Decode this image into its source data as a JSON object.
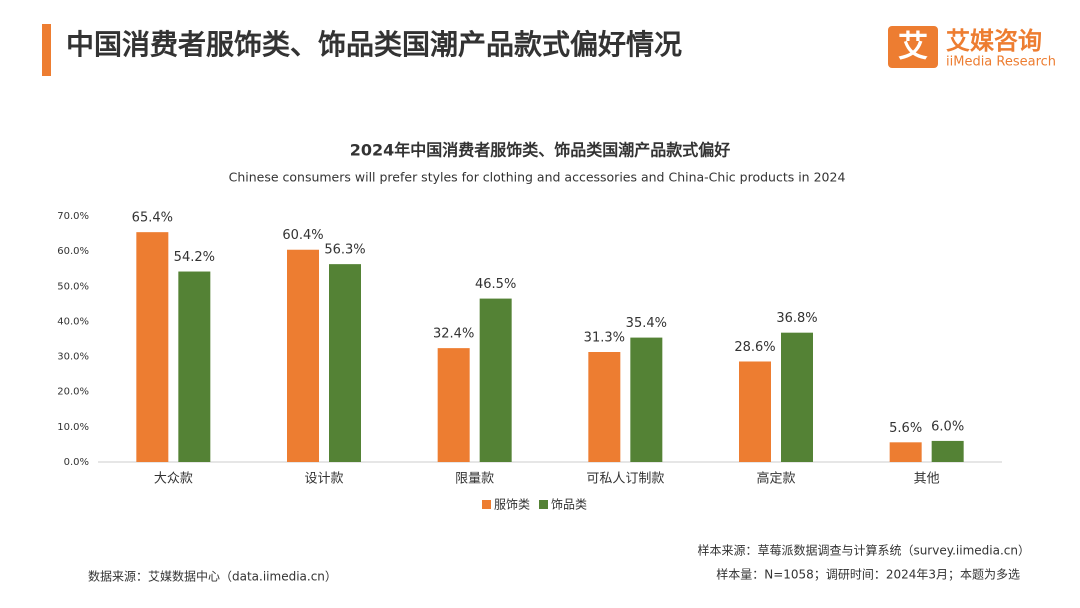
{
  "header": {
    "title": "中国消费者服饰类、饰品类国潮产品款式偏好情况",
    "logo_mark": "艾",
    "logo_cn": "艾媒咨询",
    "logo_en": "iiMedia Research"
  },
  "chart_data": {
    "type": "bar",
    "title": "2024年中国消费者服饰类、饰品类国潮产品款式偏好",
    "subtitle": "Chinese consumers will prefer styles for clothing and accessories and China-Chic products in 2024",
    "categories": [
      "大众款",
      "设计款",
      "限量款",
      "可私人订制款",
      "高定款",
      "其他"
    ],
    "series": [
      {
        "name": "服饰类",
        "color": "#ed7d31",
        "values": [
          65.4,
          60.4,
          32.4,
          31.3,
          28.6,
          5.6
        ],
        "value_labels": [
          "65.4%",
          "60.4%",
          "32.4%",
          "31.3%",
          "28.6%",
          "5.6%"
        ]
      },
      {
        "name": "饰品类",
        "color": "#548235",
        "values": [
          54.2,
          56.3,
          46.5,
          35.4,
          36.8,
          6.0
        ],
        "value_labels": [
          "54.2%",
          "56.3%",
          "46.5%",
          "35.4%",
          "36.8%",
          "6.0%"
        ]
      }
    ],
    "ylim": [
      0,
      70
    ],
    "yticks": [
      {
        "value": 0,
        "label": "0.0%"
      },
      {
        "value": 10,
        "label": "10.0%"
      },
      {
        "value": 20,
        "label": "20.0%"
      },
      {
        "value": 30,
        "label": "30.0%"
      },
      {
        "value": 40,
        "label": "40.0%"
      },
      {
        "value": 50,
        "label": "50.0%"
      },
      {
        "value": 60,
        "label": "60.0%"
      },
      {
        "value": 70,
        "label": "70.0%"
      }
    ],
    "grid": false,
    "legend": "bottom"
  },
  "footer": {
    "source": "数据来源：艾媒数据中心（data.iimedia.cn）",
    "sample_source": "样本来源：草莓派数据调查与计算系统（survey.iimedia.cn）",
    "sample_info": "样本量：N=1058；调研时间：2024年3月；本题为多选"
  }
}
